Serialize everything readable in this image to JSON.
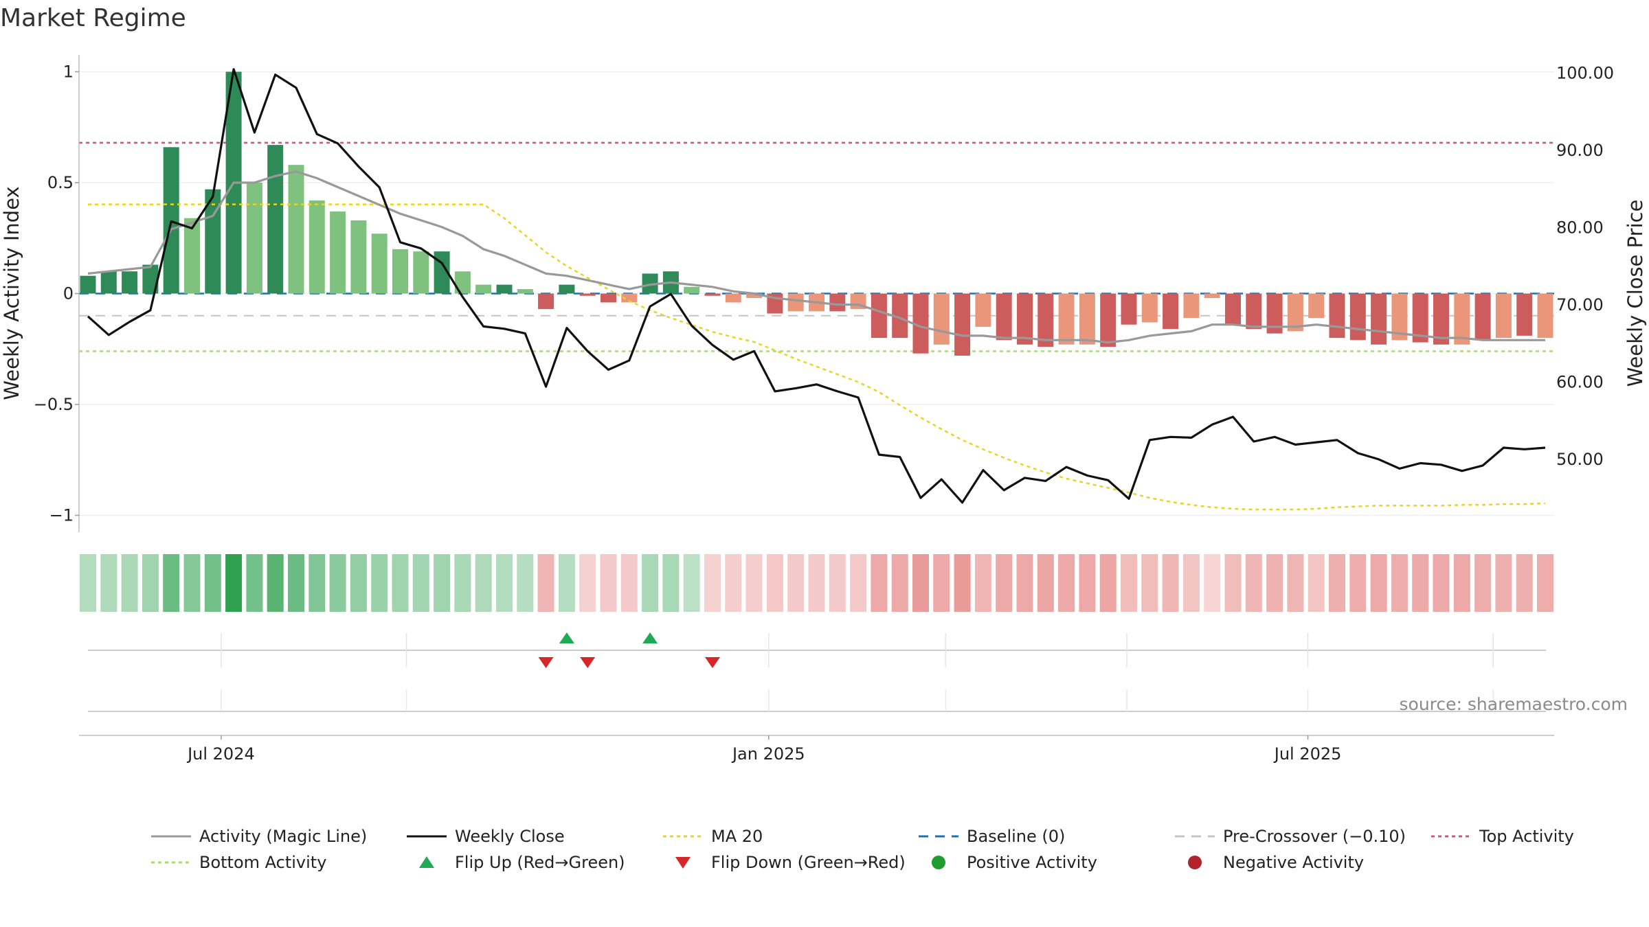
{
  "title": "Market Regime",
  "source_label": "source: sharemaestro.com",
  "colors": {
    "pos_strong": "#2e8b57",
    "pos_light": "#7fc17f",
    "neg_strong": "#cd5c5c",
    "neg_light": "#e9967a",
    "close": "#111111",
    "magic": "#999999",
    "ma20": "#e6d620",
    "baseline": "#1f6fb4",
    "precross": "#c4c4c4",
    "top": "#d9536f",
    "bottom": "#a6de6e",
    "flip_up": "#1faa55",
    "flip_down": "#d62728",
    "pos_dot": "#1f9e30",
    "neg_dot": "#b2222a"
  },
  "chart_data": {
    "type": "bar",
    "weeks": 71,
    "start_week_index": 0,
    "left_axis": {
      "label": "Weekly Activity Index",
      "range": [
        -1.08,
        1.05
      ],
      "ticks": [
        1,
        0.5,
        0,
        -0.5,
        -1
      ],
      "tick_labels": [
        "1",
        "0.5",
        "0",
        "−0.5",
        "−1"
      ]
    },
    "right_axis": {
      "label": "Weekly Close Price",
      "range": [
        42.0,
        103.0
      ],
      "ticks": [
        100,
        90,
        80,
        70,
        60,
        50
      ],
      "tick_labels": [
        "100.00",
        "90.00",
        "80.00",
        "70.00",
        "60.00",
        "50.00"
      ]
    },
    "x_axis": {
      "ticks": [
        {
          "label": "Jul 2024",
          "week": 6.4
        },
        {
          "label": "Jan 2025",
          "week": 32.7
        },
        {
          "label": "Jul 2025",
          "week": 58.6
        }
      ],
      "minor_ticks": [
        6.4,
        15.3,
        32.7,
        41.2,
        49.9,
        58.6,
        67.5
      ]
    },
    "activity": [
      0.08,
      0.1,
      0.1,
      0.13,
      0.66,
      0.34,
      0.47,
      1.0,
      0.5,
      0.67,
      0.58,
      0.42,
      0.37,
      0.33,
      0.27,
      0.2,
      0.19,
      0.19,
      0.1,
      0.04,
      0.04,
      0.02,
      -0.07,
      0.04,
      -0.01,
      -0.04,
      -0.04,
      0.09,
      0.1,
      0.03,
      -0.01,
      -0.04,
      -0.02,
      -0.09,
      -0.08,
      -0.08,
      -0.08,
      -0.07,
      -0.2,
      -0.2,
      -0.27,
      -0.23,
      -0.28,
      -0.15,
      -0.21,
      -0.23,
      -0.24,
      -0.23,
      -0.23,
      -0.24,
      -0.14,
      -0.13,
      -0.16,
      -0.11,
      -0.02,
      -0.14,
      -0.16,
      -0.18,
      -0.17,
      -0.11,
      -0.2,
      -0.21,
      -0.23,
      -0.21,
      -0.22,
      -0.23,
      -0.23,
      -0.21,
      -0.2,
      -0.19,
      -0.2
    ],
    "strength": [
      "s",
      "s",
      "s",
      "s",
      "s",
      "l",
      "s",
      "s",
      "l",
      "s",
      "l",
      "l",
      "l",
      "l",
      "l",
      "l",
      "l",
      "s",
      "l",
      "l",
      "s",
      "l",
      "s",
      "s",
      "s",
      "s",
      "l",
      "s",
      "s",
      "l",
      "s",
      "l",
      "l",
      "s",
      "l",
      "l",
      "s",
      "l",
      "s",
      "s",
      "s",
      "l",
      "s",
      "l",
      "s",
      "s",
      "s",
      "l",
      "l",
      "s",
      "s",
      "l",
      "s",
      "l",
      "l",
      "s",
      "s",
      "s",
      "l",
      "l",
      "s",
      "s",
      "s",
      "l",
      "s",
      "s",
      "l",
      "s",
      "l",
      "s",
      "l"
    ],
    "close": [
      68.5,
      66.1,
      67.8,
      69.3,
      80.8,
      79.9,
      84.0,
      100.5,
      92.3,
      99.8,
      98.1,
      92.1,
      90.9,
      87.9,
      85.2,
      78.1,
      77.3,
      75.4,
      71.0,
      67.2,
      66.9,
      66.3,
      59.4,
      67.0,
      64.0,
      61.6,
      62.8,
      69.8,
      71.4,
      67.3,
      64.8,
      62.9,
      64.0,
      58.8,
      59.2,
      59.7,
      58.8,
      58.0,
      50.6,
      50.3,
      45.0,
      47.4,
      44.4,
      48.6,
      46.0,
      47.6,
      47.2,
      49.0,
      47.9,
      47.3,
      44.9,
      52.5,
      52.9,
      52.8,
      54.5,
      55.5,
      52.3,
      52.9,
      51.9,
      52.2,
      52.5,
      50.8,
      50.0,
      48.8,
      49.5,
      49.3,
      48.5,
      49.2,
      51.5,
      51.3,
      51.5
    ],
    "magic": [
      0.09,
      0.1,
      0.11,
      0.12,
      0.29,
      0.32,
      0.35,
      0.5,
      0.5,
      0.53,
      0.55,
      0.52,
      0.48,
      0.44,
      0.4,
      0.36,
      0.33,
      0.3,
      0.26,
      0.2,
      0.17,
      0.13,
      0.09,
      0.08,
      0.06,
      0.04,
      0.02,
      0.04,
      0.05,
      0.04,
      0.03,
      0.01,
      0.0,
      -0.02,
      -0.03,
      -0.04,
      -0.05,
      -0.05,
      -0.08,
      -0.11,
      -0.15,
      -0.17,
      -0.19,
      -0.19,
      -0.2,
      -0.2,
      -0.21,
      -0.21,
      -0.21,
      -0.22,
      -0.21,
      -0.19,
      -0.18,
      -0.17,
      -0.14,
      -0.14,
      -0.15,
      -0.15,
      -0.15,
      -0.14,
      -0.15,
      -0.16,
      -0.17,
      -0.18,
      -0.19,
      -0.2,
      -0.2,
      -0.21,
      -0.21,
      -0.21,
      -0.21
    ],
    "ma20": [
      83.0,
      83.0,
      83.0,
      83.0,
      83.0,
      83.0,
      83.0,
      83.0,
      83.0,
      83.0,
      83.0,
      83.0,
      83.0,
      83.0,
      83.0,
      83.0,
      83.0,
      83.0,
      83.0,
      83.0,
      81.2,
      79.0,
      76.8,
      75.0,
      73.5,
      72.0,
      70.5,
      69.3,
      68.3,
      67.4,
      66.5,
      65.8,
      65.2,
      64.1,
      63.0,
      62.0,
      61.0,
      60.0,
      58.7,
      57.0,
      55.4,
      53.9,
      52.5,
      51.3,
      50.2,
      49.2,
      48.3,
      47.5,
      46.9,
      46.3,
      45.7,
      45.0,
      44.5,
      44.1,
      43.8,
      43.6,
      43.5,
      43.5,
      43.5,
      43.6,
      43.8,
      43.9,
      44.0,
      44.0,
      44.0,
      44.0,
      44.1,
      44.1,
      44.2,
      44.2,
      44.3
    ],
    "heat": [
      0.2,
      0.22,
      0.24,
      0.3,
      0.6,
      0.45,
      0.55,
      0.95,
      0.55,
      0.7,
      0.6,
      0.48,
      0.42,
      0.38,
      0.34,
      0.3,
      0.28,
      0.3,
      0.25,
      0.22,
      0.2,
      0.18,
      -0.35,
      0.18,
      -0.15,
      -0.2,
      -0.2,
      0.25,
      0.25,
      0.15,
      -0.15,
      -0.18,
      -0.18,
      -0.22,
      -0.2,
      -0.2,
      -0.2,
      -0.2,
      -0.45,
      -0.45,
      -0.55,
      -0.45,
      -0.55,
      -0.35,
      -0.45,
      -0.45,
      -0.48,
      -0.45,
      -0.45,
      -0.48,
      -0.3,
      -0.3,
      -0.35,
      -0.25,
      -0.12,
      -0.3,
      -0.35,
      -0.38,
      -0.36,
      -0.25,
      -0.4,
      -0.42,
      -0.45,
      -0.42,
      -0.44,
      -0.45,
      -0.45,
      -0.42,
      -0.4,
      -0.4,
      -0.42
    ],
    "reference_lines": {
      "top_activity": 0.68,
      "bottom_activity": -0.26,
      "baseline": 0,
      "pre_crossover": -0.1
    },
    "flips_up": [
      23,
      27
    ],
    "flips_down": [
      22,
      24,
      30
    ],
    "legend": [
      {
        "label": "Activity (Magic Line)",
        "kind": "line",
        "color": "#999999",
        "dash": ""
      },
      {
        "label": "Weekly Close",
        "kind": "line",
        "color": "#111111",
        "dash": ""
      },
      {
        "label": "MA 20",
        "kind": "line",
        "color": "#e6d620",
        "dash": "5,5"
      },
      {
        "label": "Baseline (0)",
        "kind": "line",
        "color": "#1f6fb4",
        "dash": "14,10"
      },
      {
        "label": "Pre-Crossover (−0.10)",
        "kind": "line",
        "color": "#c4c4c4",
        "dash": "14,10"
      },
      {
        "label": "Top Activity",
        "kind": "line",
        "color": "#d9536f",
        "dash": "5,5"
      },
      {
        "label": "Bottom Activity",
        "kind": "line",
        "color": "#a6de6e",
        "dash": "5,5"
      },
      {
        "label": "Flip Up (Red→Green)",
        "kind": "tri-up",
        "color": "#1faa55",
        "dash": ""
      },
      {
        "label": "Flip Down (Green→Red)",
        "kind": "tri-down",
        "color": "#d62728",
        "dash": ""
      },
      {
        "label": "Positive Activity",
        "kind": "dot",
        "color": "#1f9e30",
        "dash": ""
      },
      {
        "label": "Negative Activity",
        "kind": "dot",
        "color": "#b2222a",
        "dash": ""
      }
    ]
  }
}
